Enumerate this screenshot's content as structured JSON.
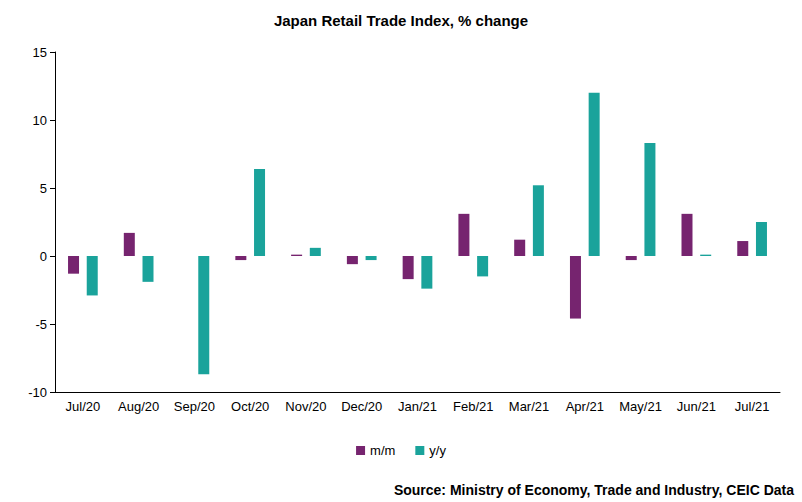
{
  "chart_data": {
    "type": "bar",
    "title": "Japan Retail Trade Index, % change",
    "source": "Source: Ministry of Economy, Trade and Industry, CEIC Data",
    "categories": [
      "Jul/20",
      "Aug/20",
      "Sep/20",
      "Oct/20",
      "Nov/20",
      "Dec/20",
      "Jan/21",
      "Feb/21",
      "Mar/21",
      "Apr/21",
      "May/21",
      "Jun/21",
      "Jul/21"
    ],
    "series": [
      {
        "name": "m/m",
        "color": "#76246f",
        "values": [
          -1.3,
          1.7,
          0,
          -0.3,
          0.1,
          -0.6,
          -1.7,
          3.1,
          1.2,
          -4.6,
          -0.3,
          3.1,
          1.1
        ]
      },
      {
        "name": "y/y",
        "color": "#1aa39b",
        "values": [
          -2.9,
          -1.9,
          -8.7,
          6.4,
          0.6,
          -0.3,
          -2.4,
          -1.5,
          5.2,
          12.0,
          8.3,
          0.1,
          2.5
        ]
      }
    ],
    "ylim": [
      -10,
      15
    ],
    "yticks": [
      -10,
      -5,
      0,
      5,
      10,
      15
    ],
    "grid": false,
    "legend": "bottom"
  }
}
